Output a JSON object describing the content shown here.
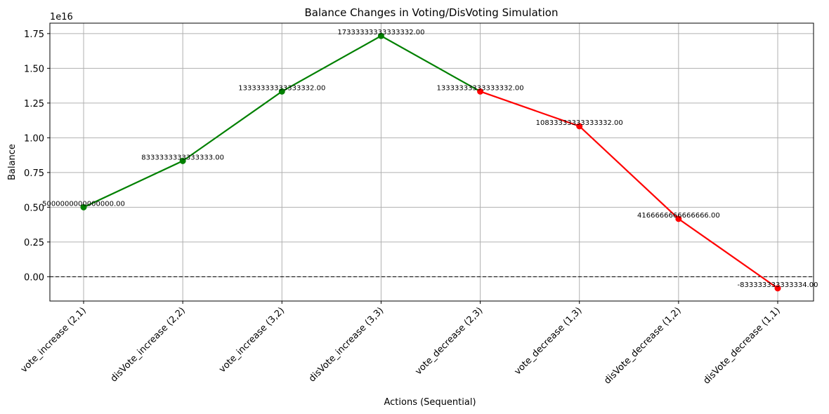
{
  "chart_data": {
    "type": "line",
    "title": "Balance Changes in Voting/DisVoting Simulation",
    "xlabel": "Actions (Sequential)",
    "ylabel": "Balance",
    "y_offset_label": "1e16",
    "categories": [
      "vote_increase (2,1)",
      "disVote_increase (2,2)",
      "vote_increase (3,2)",
      "disVote_increase (3,3)",
      "vote_decrease (2,3)",
      "vote_decrease (1,3)",
      "disVote_decrease (1,2)",
      "disVote_decrease (1,1)"
    ],
    "values": [
      5000000000000000,
      8333333333333333,
      13333333333333332,
      17333333333333332,
      13333333333333332,
      10833333333333332,
      4166666666666666,
      -833333333333334
    ],
    "annotations": [
      "5000000000000000.00",
      "8333333333333333.00",
      "13333333333333332.00",
      "17333333333333332.00",
      "13333333333333332.00",
      "10833333333333332.00",
      "4166666666666666.00",
      "-833333333333334.00"
    ],
    "series": [
      {
        "name": "increase",
        "color": "#008000",
        "x_indices": [
          0,
          1,
          2,
          3,
          4
        ]
      },
      {
        "name": "decrease",
        "color": "#ff0000",
        "x_indices": [
          4,
          5,
          6,
          7
        ]
      }
    ],
    "yticks": [
      "0.00",
      "0.25",
      "0.50",
      "0.75",
      "1.00",
      "1.25",
      "1.50",
      "1.75"
    ],
    "ytick_values": [
      0,
      0.25,
      0.5,
      0.75,
      1.0,
      1.25,
      1.5,
      1.75
    ],
    "ylim": [
      -0.175,
      1.825
    ],
    "zero_line": {
      "style": "dashed",
      "color": "#000000"
    },
    "grid": true,
    "legend": null
  }
}
